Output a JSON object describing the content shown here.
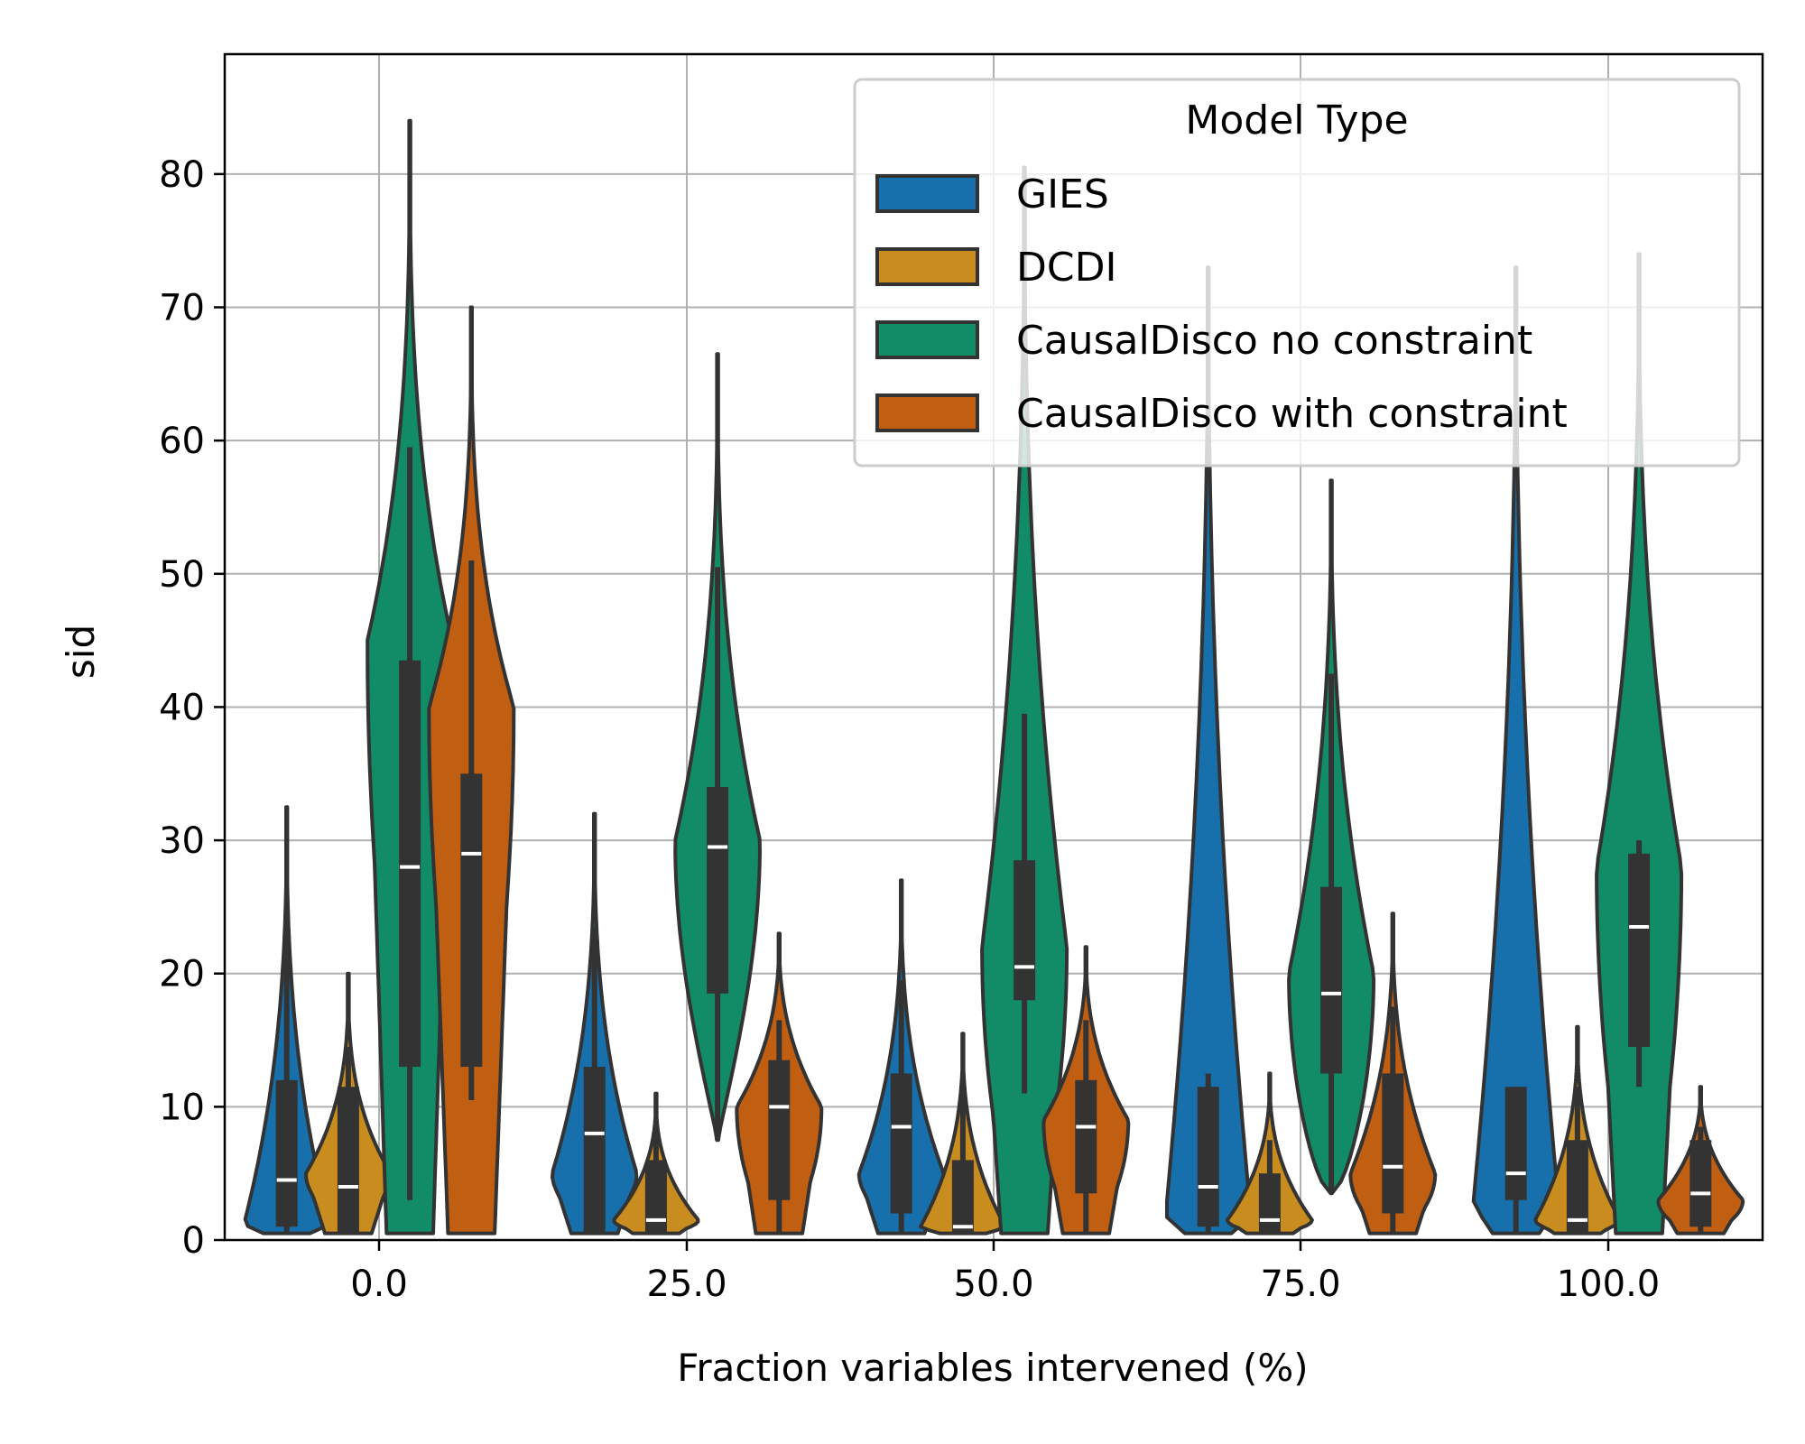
{
  "chart_data": {
    "type": "violin",
    "xlabel": "Fraction variables intervened (%)",
    "ylabel": "sid",
    "categories": [
      "0.0",
      "25.0",
      "50.0",
      "75.0",
      "100.0"
    ],
    "ylim": [
      0,
      89
    ],
    "yticks": [
      0,
      10,
      20,
      30,
      40,
      50,
      60,
      70,
      80
    ],
    "grid": true,
    "legend": {
      "title": "Model Type",
      "placement": "top-right"
    },
    "series": [
      {
        "name": "GIES",
        "color": "#1770ab",
        "violins": [
          {
            "cut": [
              0.5,
              32.5
            ],
            "q1": 1,
            "median": 4.5,
            "q3": 12,
            "whisker": [
              0.5,
              23.5
            ],
            "peak": 1.3,
            "skew": 0.9
          },
          {
            "cut": [
              0.5,
              32
            ],
            "q1": 0.5,
            "median": 8,
            "q3": 13,
            "whisker": [
              0.5,
              23.5
            ],
            "peak": 5,
            "skew": 1
          },
          {
            "cut": [
              0.5,
              27
            ],
            "q1": 2,
            "median": 8.5,
            "q3": 12.5,
            "whisker": [
              0.5,
              19.5
            ],
            "peak": 5,
            "skew": 1
          },
          {
            "cut": [
              0.5,
              73
            ],
            "q1": 1,
            "median": 4,
            "q3": 11.5,
            "whisker": [
              0.5,
              12.5
            ],
            "peak": 2,
            "skew": 0.5
          },
          {
            "cut": [
              0.5,
              73
            ],
            "q1": 3,
            "median": 5,
            "q3": 11.5,
            "whisker": [
              0.5,
              11.5
            ],
            "peak": 3,
            "skew": 0.5
          }
        ]
      },
      {
        "name": "DCDI",
        "color": "#c98c1e",
        "violins": [
          {
            "cut": [
              0.5,
              20
            ],
            "q1": 0.5,
            "median": 4,
            "q3": 11.5,
            "whisker": [
              0.5,
              14.5
            ],
            "peak": 5,
            "skew": 1.2
          },
          {
            "cut": [
              0.5,
              11
            ],
            "q1": 0.5,
            "median": 1.5,
            "q3": 6,
            "whisker": [
              0.5,
              8.5
            ],
            "peak": 1.5,
            "skew": 0.9
          },
          {
            "cut": [
              0.5,
              15.5
            ],
            "q1": 0.5,
            "median": 1,
            "q3": 6,
            "whisker": [
              0.5,
              11.5
            ],
            "peak": 1,
            "skew": 0.9
          },
          {
            "cut": [
              0.5,
              12.5
            ],
            "q1": 0.5,
            "median": 1.5,
            "q3": 5,
            "whisker": [
              0.5,
              7.5
            ],
            "peak": 1.5,
            "skew": 0.9
          },
          {
            "cut": [
              0.5,
              16
            ],
            "q1": 0.5,
            "median": 1.5,
            "q3": 7.5,
            "whisker": [
              0.5,
              11.5
            ],
            "peak": 1.5,
            "skew": 0.9
          }
        ]
      },
      {
        "name": "CausalDisco no constraint",
        "color": "#118c66",
        "violins": [
          {
            "cut": [
              0.5,
              84
            ],
            "q1": 13,
            "median": 28,
            "q3": 43.5,
            "whisker": [
              3,
              59.5
            ],
            "peak": 45,
            "skew": 1.2
          },
          {
            "cut": [
              7.5,
              66.5
            ],
            "q1": 18.5,
            "median": 29.5,
            "q3": 34,
            "whisker": [
              7.5,
              50.5
            ],
            "peak": 30,
            "skew": 1
          },
          {
            "cut": [
              0.5,
              80.5
            ],
            "q1": 18,
            "median": 20.5,
            "q3": 28.5,
            "whisker": [
              11,
              39.5
            ],
            "peak": 22,
            "skew": 0.7
          },
          {
            "cut": [
              3.5,
              57
            ],
            "q1": 12.5,
            "median": 18.5,
            "q3": 26.5,
            "whisker": [
              3.5,
              42.5
            ],
            "peak": 20,
            "skew": 0.8
          },
          {
            "cut": [
              0.5,
              74
            ],
            "q1": 14.5,
            "median": 23.5,
            "q3": 29,
            "whisker": [
              11.5,
              30
            ],
            "peak": 28,
            "skew": 0.9
          }
        ]
      },
      {
        "name": "CausalDisco with constraint",
        "color": "#c05e12",
        "violins": [
          {
            "cut": [
              0.5,
              70
            ],
            "q1": 13,
            "median": 29,
            "q3": 35,
            "whisker": [
              10.5,
              51
            ],
            "peak": 40,
            "skew": 1.2
          },
          {
            "cut": [
              0.5,
              23
            ],
            "q1": 3,
            "median": 10,
            "q3": 13.5,
            "whisker": [
              0.5,
              16.5
            ],
            "peak": 10,
            "skew": 0.8
          },
          {
            "cut": [
              0.5,
              22
            ],
            "q1": 3.5,
            "median": 8.5,
            "q3": 12,
            "whisker": [
              0.5,
              16.5
            ],
            "peak": 9,
            "skew": 0.8
          },
          {
            "cut": [
              0.5,
              24.5
            ],
            "q1": 2,
            "median": 5.5,
            "q3": 12.5,
            "whisker": [
              0.5,
              17.5
            ],
            "peak": 5,
            "skew": 0.9
          },
          {
            "cut": [
              0.5,
              11.5
            ],
            "q1": 1,
            "median": 3.5,
            "q3": 7.5,
            "whisker": [
              0.5,
              8.5
            ],
            "peak": 3,
            "skew": 0.7
          }
        ]
      }
    ]
  }
}
